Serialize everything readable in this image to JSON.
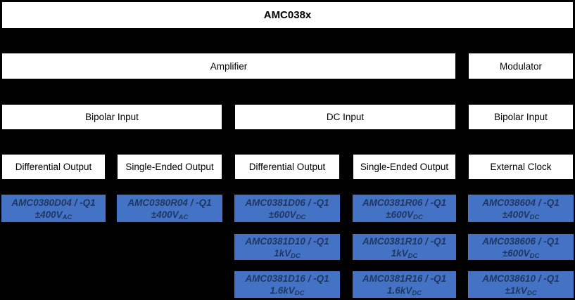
{
  "palette": {
    "background": "#000000",
    "node_fill": "#FFFFFF",
    "node_text": "#000000",
    "part_fill": "#4472C4",
    "part_text": "#1F3864"
  },
  "root": {
    "label": "AMC038x"
  },
  "functions": [
    {
      "label": "Amplifier"
    },
    {
      "label": "Modulator"
    }
  ],
  "inputs": [
    {
      "label": "Bipolar Input"
    },
    {
      "label": "DC Input"
    },
    {
      "label": "Bipolar Input"
    }
  ],
  "outputs": [
    {
      "label": "Differential Output"
    },
    {
      "label": "Single-Ended Output"
    },
    {
      "label": "Differential Output"
    },
    {
      "label": "Single-Ended Output"
    },
    {
      "label": "External Clock"
    }
  ],
  "parts": [
    {
      "name": "AMC0380D04 / -Q1",
      "voltage": "±400V",
      "sub": "AC"
    },
    {
      "name": "AMC0380R04 / -Q1",
      "voltage": "±400V",
      "sub": "AC"
    },
    {
      "name": "AMC0381D06 / -Q1",
      "voltage": "±600V",
      "sub": "DC"
    },
    {
      "name": "AMC0381R06 / -Q1",
      "voltage": "±600V",
      "sub": "DC"
    },
    {
      "name": "AMC038604 / -Q1",
      "voltage": "±400V",
      "sub": "DC"
    },
    {
      "name": "AMC0381D10 / -Q1",
      "voltage": "1kV",
      "sub": "DC"
    },
    {
      "name": "AMC0381R10 / -Q1",
      "voltage": "1kV",
      "sub": "DC"
    },
    {
      "name": "AMC038606 / -Q1",
      "voltage": "±600V",
      "sub": "DC"
    },
    {
      "name": "AMC0381D16 / -Q1",
      "voltage": "1.6kV",
      "sub": "DC"
    },
    {
      "name": "AMC0381R16 / -Q1",
      "voltage": "1.6kV",
      "sub": "DC"
    },
    {
      "name": "AMC038610 / -Q1",
      "voltage": "±1kV",
      "sub": "DC"
    }
  ]
}
